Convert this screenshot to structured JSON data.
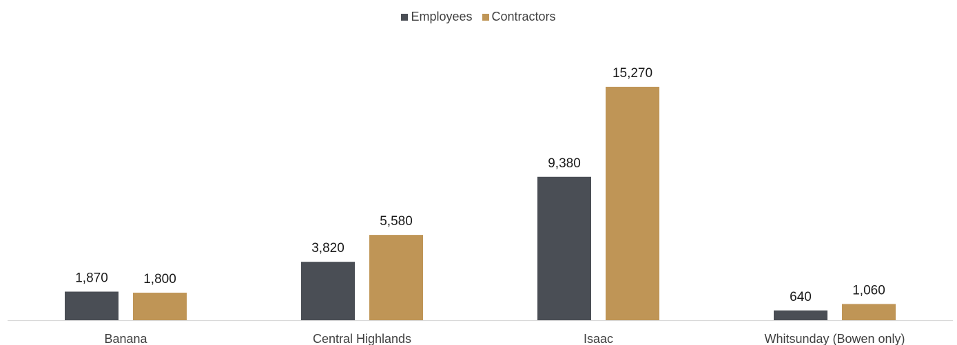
{
  "chart_data": {
    "type": "bar",
    "categories": [
      "Banana",
      "Central Highlands",
      "Isaac",
      "Whitsunday (Bowen only)"
    ],
    "series": [
      {
        "name": "Employees",
        "values": [
          1870,
          3820,
          9380,
          640
        ],
        "value_labels": [
          "1,870",
          "3,820",
          "9,380",
          "640"
        ],
        "color": "#4a4e55"
      },
      {
        "name": "Contractors",
        "values": [
          1800,
          5580,
          15270,
          1060
        ],
        "value_labels": [
          "1,800",
          "5,580",
          "15,270",
          "1,060"
        ],
        "color": "#bf9556"
      }
    ],
    "title": "",
    "xlabel": "",
    "ylabel": "",
    "ylim": [
      0,
      15270
    ],
    "grid": false,
    "legend_position": "top-center",
    "axis_color": "#d9d9d9"
  }
}
